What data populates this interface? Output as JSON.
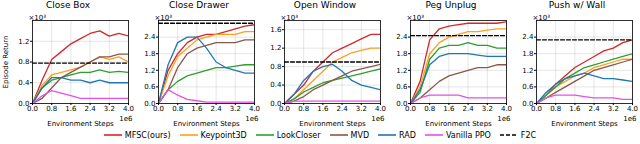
{
  "chart_data": [
    {
      "type": "line",
      "title": "Close Box",
      "x_label": "Environment Steps",
      "y_label": "Episode Return",
      "x_multiplier": "1e6",
      "y_multiplier": "×10³",
      "grid": true,
      "legend": "bottom",
      "xlim": [
        0,
        4
      ],
      "xticks": [
        {
          "value": 0,
          "label": "0.0"
        },
        0.8,
        1.6,
        2.4,
        3.2,
        {
          "value": 4,
          "label": "4.0"
        }
      ],
      "ylim": [
        0,
        1.6
      ],
      "yticks": [
        {
          "value": 0,
          "label": "0.0"
        },
        0.4,
        0.8,
        1.2
      ],
      "x": [
        0,
        0.4,
        0.8,
        1.2,
        1.6,
        2.0,
        2.4,
        2.8,
        3.2,
        3.6,
        4.0
      ],
      "series": [
        {
          "name": "MFSC(ours)",
          "color": "#d62728",
          "line_style": "solid",
          "values": [
            0,
            0.45,
            0.85,
            1.0,
            1.15,
            1.25,
            1.35,
            1.4,
            1.3,
            1.35,
            1.3
          ]
        },
        {
          "name": "Keypoint3D",
          "color": "#ff9f1c",
          "line_style": "solid",
          "values": [
            0,
            0.35,
            0.55,
            0.6,
            0.65,
            0.7,
            0.8,
            0.9,
            0.85,
            0.9,
            0.8
          ]
        },
        {
          "name": "LookCloser",
          "color": "#2ca02c",
          "line_style": "solid",
          "values": [
            0,
            0.3,
            0.45,
            0.5,
            0.55,
            0.6,
            0.6,
            0.65,
            0.6,
            0.62,
            0.6
          ]
        },
        {
          "name": "MVD",
          "color": "#8c564b",
          "line_style": "solid",
          "values": [
            0,
            0.1,
            0.3,
            0.5,
            0.6,
            0.7,
            0.8,
            0.9,
            0.9,
            0.95,
            0.95
          ]
        },
        {
          "name": "RAD",
          "color": "#1f77b4",
          "line_style": "solid",
          "values": [
            0,
            0.3,
            0.5,
            0.5,
            0.45,
            0.45,
            0.4,
            0.45,
            0.4,
            0.4,
            0.4
          ]
        },
        {
          "name": "Vanilla PPO",
          "color": "#e84ee8",
          "line_style": "solid",
          "values": [
            0,
            0.15,
            0.25,
            0.2,
            0.15,
            0.1,
            0.1,
            0.1,
            0.1,
            0.1,
            0.1
          ]
        },
        {
          "name": "F2C",
          "color": "#000000",
          "line_style": "dashed",
          "values": [
            0.78,
            0.78,
            0.78,
            0.78,
            0.78,
            0.78,
            0.78,
            0.78,
            0.78,
            0.78,
            0.78
          ]
        }
      ]
    },
    {
      "type": "line",
      "title": "Close Drawer",
      "x_label": "Environment Steps",
      "x_multiplier": "1e6",
      "y_multiplier": "×10³",
      "grid": true,
      "xlim": [
        0,
        4
      ],
      "xticks": [
        {
          "value": 0,
          "label": "0.0"
        },
        0.8,
        1.6,
        2.4,
        3.2,
        {
          "value": 4,
          "label": "4.0"
        }
      ],
      "ylim": [
        0,
        3.0
      ],
      "yticks": [
        {
          "value": 0,
          "label": "0.0"
        },
        0.6,
        1.2,
        1.8,
        2.4
      ],
      "x": [
        0,
        0.4,
        0.8,
        1.2,
        1.6,
        2.0,
        2.4,
        2.8,
        3.2,
        3.6,
        4.0
      ],
      "series": [
        {
          "name": "MFSC(ours)",
          "color": "#d62728",
          "line_style": "solid",
          "values": [
            0,
            1.2,
            1.8,
            2.2,
            2.4,
            2.5,
            2.5,
            2.6,
            2.7,
            2.8,
            2.85
          ]
        },
        {
          "name": "Keypoint3D",
          "color": "#ff9f1c",
          "line_style": "solid",
          "values": [
            0,
            1.0,
            1.7,
            2.0,
            2.3,
            2.4,
            2.5,
            2.5,
            2.5,
            2.6,
            2.6
          ]
        },
        {
          "name": "LookCloser",
          "color": "#2ca02c",
          "line_style": "solid",
          "values": [
            0,
            0.5,
            0.8,
            1.0,
            1.1,
            1.2,
            1.3,
            1.3,
            1.35,
            1.4,
            1.4
          ]
        },
        {
          "name": "MVD",
          "color": "#8c564b",
          "line_style": "solid",
          "values": [
            0,
            0.5,
            1.3,
            1.8,
            2.0,
            2.1,
            2.2,
            2.2,
            2.2,
            2.3,
            2.3
          ]
        },
        {
          "name": "RAD",
          "color": "#1f77b4",
          "line_style": "solid",
          "values": [
            0,
            1.4,
            2.2,
            2.4,
            2.4,
            2.0,
            1.5,
            1.3,
            1.2,
            1.1,
            1.1
          ]
        },
        {
          "name": "Vanilla PPO",
          "color": "#e84ee8",
          "line_style": "solid",
          "values": [
            0,
            0.5,
            0.3,
            0.15,
            0.1,
            0.05,
            0.05,
            0.05,
            0.05,
            0.05,
            0.05
          ]
        },
        {
          "name": "F2C",
          "color": "#000000",
          "line_style": "dashed",
          "values": [
            2.9,
            2.9,
            2.9,
            2.9,
            2.9,
            2.9,
            2.9,
            2.9,
            2.9,
            2.9,
            2.9
          ]
        }
      ]
    },
    {
      "type": "line",
      "title": "Open Window",
      "x_label": "Environment Steps",
      "x_multiplier": "1e6",
      "y_multiplier": "×10³",
      "grid": true,
      "xlim": [
        0,
        4
      ],
      "xticks": [
        {
          "value": 0,
          "label": "0.0"
        },
        0.8,
        1.6,
        2.4,
        3.2,
        {
          "value": 4,
          "label": "4.0"
        }
      ],
      "ylim": [
        0,
        1.8
      ],
      "yticks": [
        {
          "value": 0,
          "label": "0.0"
        },
        0.4,
        0.8,
        1.2,
        1.6
      ],
      "x": [
        0,
        0.4,
        0.8,
        1.2,
        1.6,
        2.0,
        2.4,
        2.8,
        3.2,
        3.6,
        4.0
      ],
      "series": [
        {
          "name": "MFSC(ours)",
          "color": "#d62728",
          "line_style": "solid",
          "values": [
            0,
            0.2,
            0.4,
            0.7,
            0.9,
            1.1,
            1.2,
            1.3,
            1.4,
            1.5,
            1.5
          ]
        },
        {
          "name": "Keypoint3D",
          "color": "#ff9f1c",
          "line_style": "solid",
          "values": [
            0,
            0.1,
            0.3,
            0.5,
            0.7,
            0.9,
            1.0,
            1.1,
            1.15,
            1.2,
            1.2
          ]
        },
        {
          "name": "LookCloser",
          "color": "#2ca02c",
          "line_style": "solid",
          "values": [
            0,
            0.1,
            0.25,
            0.35,
            0.45,
            0.5,
            0.55,
            0.6,
            0.65,
            0.7,
            0.75
          ]
        },
        {
          "name": "MVD",
          "color": "#8c564b",
          "line_style": "solid",
          "values": [
            0,
            0.05,
            0.15,
            0.3,
            0.4,
            0.5,
            0.6,
            0.7,
            0.75,
            0.8,
            0.85
          ]
        },
        {
          "name": "RAD",
          "color": "#1f77b4",
          "line_style": "solid",
          "values": [
            0,
            0.2,
            0.5,
            0.7,
            0.8,
            0.85,
            0.7,
            0.5,
            0.4,
            0.35,
            0.3
          ]
        },
        {
          "name": "Vanilla PPO",
          "color": "#e84ee8",
          "line_style": "solid",
          "values": [
            0,
            0.05,
            0.05,
            0.05,
            0.05,
            0.05,
            0.05,
            0.05,
            0.05,
            0.05,
            0.05
          ]
        },
        {
          "name": "F2C",
          "color": "#000000",
          "line_style": "dashed",
          "values": [
            0.9,
            0.9,
            0.9,
            0.9,
            0.9,
            0.9,
            0.9,
            0.9,
            0.9,
            0.9,
            0.9
          ]
        }
      ]
    },
    {
      "type": "line",
      "title": "Peg Unplug",
      "x_label": "Environment Steps",
      "x_multiplier": "1e6",
      "y_multiplier": "×10³",
      "grid": true,
      "xlim": [
        0,
        4
      ],
      "xticks": [
        {
          "value": 0,
          "label": "0.0"
        },
        0.8,
        1.6,
        2.4,
        3.2,
        {
          "value": 4,
          "label": "4.0"
        }
      ],
      "ylim": [
        0,
        3.0
      ],
      "yticks": [
        {
          "value": 0,
          "label": "0.0"
        },
        0.6,
        1.2,
        1.8,
        2.4
      ],
      "x": [
        0,
        0.4,
        0.8,
        1.2,
        1.6,
        2.0,
        2.4,
        2.8,
        3.2,
        3.6,
        4.0
      ],
      "series": [
        {
          "name": "MFSC(ours)",
          "color": "#d62728",
          "line_style": "solid",
          "values": [
            0,
            0.8,
            2.3,
            2.7,
            2.8,
            2.85,
            2.9,
            2.9,
            2.9,
            2.9,
            2.95
          ]
        },
        {
          "name": "Keypoint3D",
          "color": "#ff9f1c",
          "line_style": "solid",
          "values": [
            0,
            0.6,
            1.8,
            2.2,
            2.4,
            2.5,
            2.6,
            2.6,
            2.65,
            2.7,
            2.7
          ]
        },
        {
          "name": "LookCloser",
          "color": "#2ca02c",
          "line_style": "solid",
          "values": [
            0,
            0.4,
            1.6,
            2.0,
            2.1,
            2.1,
            2.2,
            2.1,
            2.1,
            2.0,
            2.0
          ]
        },
        {
          "name": "MVD",
          "color": "#8c564b",
          "line_style": "solid",
          "values": [
            0,
            0.2,
            0.5,
            0.8,
            1.0,
            1.1,
            1.2,
            1.3,
            1.3,
            1.4,
            1.4
          ]
        },
        {
          "name": "RAD",
          "color": "#1f77b4",
          "line_style": "solid",
          "values": [
            0,
            0.5,
            1.4,
            1.7,
            1.8,
            1.8,
            1.8,
            1.75,
            1.7,
            1.7,
            1.7
          ]
        },
        {
          "name": "Vanilla PPO",
          "color": "#e84ee8",
          "line_style": "solid",
          "values": [
            0,
            0.2,
            0.3,
            0.3,
            0.3,
            0.3,
            0.2,
            0.2,
            0.2,
            0.2,
            0.2
          ]
        },
        {
          "name": "F2C",
          "color": "#000000",
          "line_style": "dashed",
          "values": [
            2.45,
            2.45,
            2.45,
            2.45,
            2.45,
            2.45,
            2.45,
            2.45,
            2.45,
            2.45,
            2.45
          ]
        }
      ]
    },
    {
      "type": "line",
      "title": "Push w/ Wall",
      "x_label": "Environment Steps",
      "x_multiplier": "1e6",
      "y_multiplier": "×10³",
      "grid": true,
      "xlim": [
        0,
        4
      ],
      "xticks": [
        {
          "value": 0,
          "label": "0.0"
        },
        0.8,
        1.6,
        2.4,
        3.2,
        {
          "value": 4,
          "label": "4.0"
        }
      ],
      "ylim": [
        0,
        3.0
      ],
      "yticks": [
        {
          "value": 0,
          "label": "0.0"
        },
        0.6,
        1.2,
        1.8,
        2.4
      ],
      "x": [
        0,
        0.4,
        0.8,
        1.2,
        1.6,
        2.0,
        2.4,
        2.8,
        3.2,
        3.6,
        4.0
      ],
      "series": [
        {
          "name": "MFSC(ours)",
          "color": "#d62728",
          "line_style": "solid",
          "values": [
            0,
            0.3,
            0.7,
            1.0,
            1.3,
            1.5,
            1.7,
            1.9,
            2.0,
            2.2,
            2.3
          ]
        },
        {
          "name": "Keypoint3D",
          "color": "#ff9f1c",
          "line_style": "solid",
          "values": [
            0,
            0.3,
            0.6,
            0.8,
            1.0,
            1.1,
            1.3,
            1.4,
            1.5,
            1.6,
            1.6
          ]
        },
        {
          "name": "LookCloser",
          "color": "#2ca02c",
          "line_style": "solid",
          "values": [
            0,
            0.3,
            0.6,
            0.9,
            1.1,
            1.3,
            1.4,
            1.5,
            1.6,
            1.7,
            1.8
          ]
        },
        {
          "name": "MVD",
          "color": "#8c564b",
          "line_style": "solid",
          "values": [
            0,
            0.2,
            0.4,
            0.6,
            0.8,
            1.0,
            1.2,
            1.3,
            1.4,
            1.5,
            1.6
          ]
        },
        {
          "name": "RAD",
          "color": "#1f77b4",
          "line_style": "solid",
          "values": [
            0,
            0.4,
            0.7,
            0.9,
            1.0,
            1.1,
            1.0,
            0.9,
            0.9,
            0.85,
            0.8
          ]
        },
        {
          "name": "Vanilla PPO",
          "color": "#e84ee8",
          "line_style": "solid",
          "values": [
            0,
            0.2,
            0.3,
            0.3,
            0.3,
            0.25,
            0.2,
            0.2,
            0.2,
            0.15,
            0.15
          ]
        },
        {
          "name": "F2C",
          "color": "#000000",
          "line_style": "dashed",
          "values": [
            2.3,
            2.3,
            2.3,
            2.3,
            2.3,
            2.3,
            2.3,
            2.3,
            2.3,
            2.3,
            2.3
          ]
        }
      ]
    }
  ]
}
